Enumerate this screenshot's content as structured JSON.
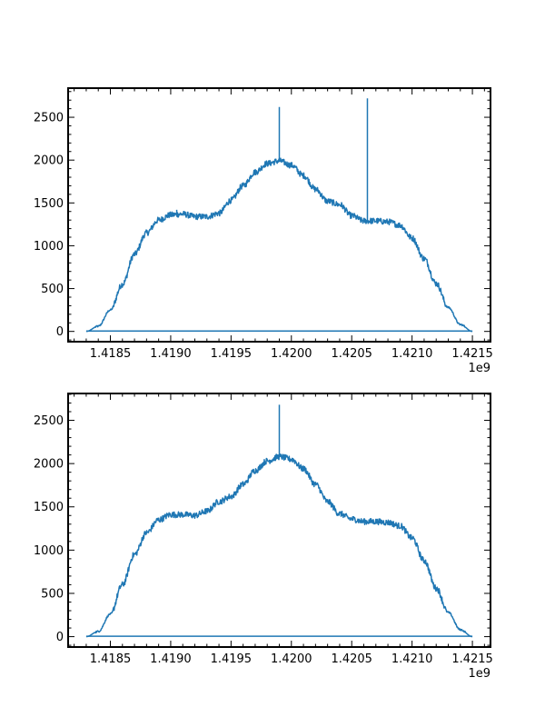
{
  "colors": {
    "series": "#1f77b4",
    "axes": "#000000",
    "background": "#ffffff"
  },
  "chart_data": [
    {
      "type": "line",
      "title": "",
      "xlabel": "",
      "ylabel": "",
      "x_offset_label": "1e9",
      "xlim": [
        1418150000,
        1421650000
      ],
      "ylim": [
        -120,
        2840
      ],
      "grid": false,
      "xticks": [
        1418500000,
        1419000000,
        1419500000,
        1420000000,
        1420500000,
        1421000000,
        1421500000
      ],
      "xtick_labels": [
        "1.4185",
        "1.4190",
        "1.4195",
        "1.4200",
        "1.4205",
        "1.4210",
        "1.4215"
      ],
      "yticks": [
        0,
        500,
        1000,
        1500,
        2000,
        2500
      ],
      "ytick_labels": [
        "0",
        "500",
        "1000",
        "1500",
        "2000",
        "2500"
      ],
      "series": [
        {
          "x": [
            1418300000,
            1418400000,
            1418500000,
            1418600000,
            1418700000,
            1418800000,
            1418900000,
            1419000000,
            1419100000,
            1419200000,
            1419300000,
            1419400000,
            1419500000,
            1419600000,
            1419700000,
            1419800000,
            1419900000,
            1420000000,
            1420100000,
            1420200000,
            1420300000,
            1420400000,
            1420500000,
            1420600000,
            1420700000,
            1420800000,
            1420900000,
            1421000000,
            1421100000,
            1421200000,
            1421300000,
            1421400000,
            1421500000
          ],
          "values": [
            0,
            60,
            250,
            550,
            900,
            1150,
            1300,
            1360,
            1370,
            1340,
            1340,
            1380,
            1530,
            1700,
            1860,
            1960,
            1990,
            1940,
            1820,
            1660,
            1520,
            1480,
            1350,
            1290,
            1290,
            1280,
            1240,
            1090,
            850,
            560,
            280,
            80,
            0
          ],
          "spikes": [
            {
              "x": 1419900000,
              "y": 2620
            },
            {
              "x": 1420630000,
              "y": 2720
            },
            {
              "x": 1419050000,
              "y": 1420
            }
          ],
          "baseline": {
            "x": [
              1418300000,
              1421500000
            ],
            "y": 5
          }
        }
      ]
    },
    {
      "type": "line",
      "title": "",
      "xlabel": "",
      "ylabel": "",
      "x_offset_label": "1e9",
      "xlim": [
        1418150000,
        1421650000
      ],
      "ylim": [
        -120,
        2810
      ],
      "grid": false,
      "xticks": [
        1418500000,
        1419000000,
        1419500000,
        1420000000,
        1420500000,
        1421000000,
        1421500000
      ],
      "xtick_labels": [
        "1.4185",
        "1.4190",
        "1.4195",
        "1.4200",
        "1.4205",
        "1.4210",
        "1.4215"
      ],
      "yticks": [
        0,
        500,
        1000,
        1500,
        2000,
        2500
      ],
      "ytick_labels": [
        "0",
        "500",
        "1000",
        "1500",
        "2000",
        "2500"
      ],
      "series": [
        {
          "x": [
            1418300000,
            1418400000,
            1418500000,
            1418600000,
            1418700000,
            1418800000,
            1418900000,
            1419000000,
            1419100000,
            1419200000,
            1419300000,
            1419400000,
            1419500000,
            1419600000,
            1419700000,
            1419800000,
            1419900000,
            1420000000,
            1420100000,
            1420200000,
            1420300000,
            1420400000,
            1420500000,
            1420600000,
            1420700000,
            1420800000,
            1420900000,
            1421000000,
            1421100000,
            1421200000,
            1421300000,
            1421400000,
            1421500000
          ],
          "values": [
            0,
            60,
            260,
            600,
            950,
            1200,
            1350,
            1410,
            1410,
            1400,
            1450,
            1560,
            1620,
            1760,
            1920,
            2030,
            2080,
            2050,
            1940,
            1760,
            1560,
            1420,
            1360,
            1330,
            1330,
            1320,
            1280,
            1140,
            880,
            560,
            280,
            80,
            0
          ],
          "spikes": [
            {
              "x": 1419900000,
              "y": 2680
            }
          ],
          "baseline": {
            "x": [
              1418300000,
              1421500000
            ],
            "y": 5
          }
        }
      ]
    }
  ]
}
